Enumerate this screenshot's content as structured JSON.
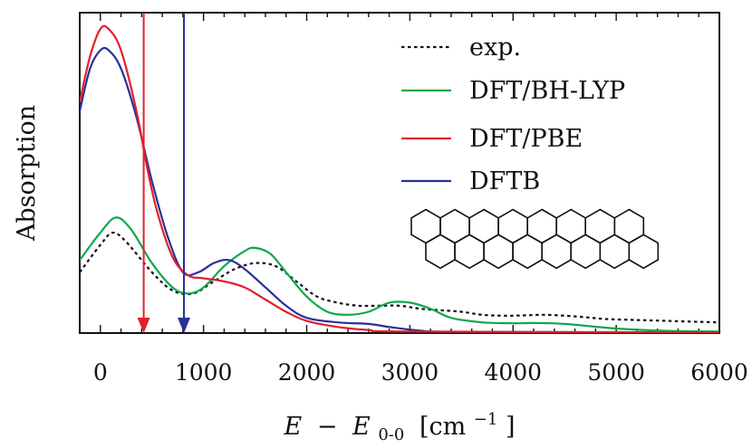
{
  "chart_data": {
    "type": "line",
    "xlabel": "E − E0-0 [cm−1]",
    "xlabel_parts": {
      "var": "E",
      "minus": "−",
      "sub_var": "E",
      "sub": "0-0",
      "unit_open": "[cm",
      "unit_exp": "−1",
      "unit_close": "]"
    },
    "ylabel": "Absorption",
    "xlim": [
      -200,
      6000
    ],
    "ylim": [
      0,
      1.0
    ],
    "x_ticks": [
      0,
      1000,
      2000,
      3000,
      4000,
      5000,
      6000
    ],
    "x_tick_labels": [
      "0",
      "1000",
      "2000",
      "3000",
      "4000",
      "5000",
      "6000"
    ],
    "y_tick_labels": [],
    "grid": false,
    "legend_position": "top-right",
    "series": [
      {
        "name": "exp.",
        "color": "#111111",
        "dash": "dotted",
        "points": [
          [
            -200,
            0.2
          ],
          [
            0,
            0.29
          ],
          [
            120,
            0.33
          ],
          [
            250,
            0.3
          ],
          [
            500,
            0.2
          ],
          [
            700,
            0.14
          ],
          [
            900,
            0.13
          ],
          [
            1100,
            0.17
          ],
          [
            1300,
            0.21
          ],
          [
            1500,
            0.23
          ],
          [
            1700,
            0.22
          ],
          [
            1900,
            0.17
          ],
          [
            2100,
            0.12
          ],
          [
            2300,
            0.1
          ],
          [
            2500,
            0.09
          ],
          [
            2700,
            0.09
          ],
          [
            2900,
            0.09
          ],
          [
            3100,
            0.08
          ],
          [
            3300,
            0.075
          ],
          [
            3500,
            0.07
          ],
          [
            3700,
            0.06
          ],
          [
            3900,
            0.057
          ],
          [
            4100,
            0.058
          ],
          [
            4300,
            0.06
          ],
          [
            4500,
            0.057
          ],
          [
            4700,
            0.052
          ],
          [
            4900,
            0.046
          ],
          [
            5200,
            0.043
          ],
          [
            5500,
            0.04
          ],
          [
            5800,
            0.037
          ],
          [
            6000,
            0.035
          ]
        ]
      },
      {
        "name": "DFT/BH-LYP",
        "color": "#0fa84a",
        "dash": "solid",
        "points": [
          [
            -200,
            0.24
          ],
          [
            0,
            0.33
          ],
          [
            150,
            0.38
          ],
          [
            300,
            0.34
          ],
          [
            500,
            0.23
          ],
          [
            700,
            0.15
          ],
          [
            850,
            0.13
          ],
          [
            1000,
            0.15
          ],
          [
            1200,
            0.22
          ],
          [
            1400,
            0.27
          ],
          [
            1500,
            0.28
          ],
          [
            1650,
            0.26
          ],
          [
            1800,
            0.2
          ],
          [
            2000,
            0.12
          ],
          [
            2200,
            0.07
          ],
          [
            2400,
            0.06
          ],
          [
            2600,
            0.07
          ],
          [
            2800,
            0.1
          ],
          [
            3000,
            0.1
          ],
          [
            3200,
            0.08
          ],
          [
            3400,
            0.05
          ],
          [
            3700,
            0.035
          ],
          [
            4000,
            0.032
          ],
          [
            4200,
            0.033
          ],
          [
            4500,
            0.03
          ],
          [
            5000,
            0.015
          ],
          [
            5500,
            0.007
          ],
          [
            6000,
            0.005
          ]
        ]
      },
      {
        "name": "DFT/PBE",
        "color": "#e3202a",
        "dash": "solid",
        "points": [
          [
            -200,
            0.76
          ],
          [
            -100,
            0.91
          ],
          [
            0,
            1.0
          ],
          [
            80,
            1.0
          ],
          [
            200,
            0.93
          ],
          [
            350,
            0.73
          ],
          [
            450,
            0.55
          ],
          [
            550,
            0.4
          ],
          [
            700,
            0.25
          ],
          [
            850,
            0.19
          ],
          [
            1000,
            0.18
          ],
          [
            1200,
            0.17
          ],
          [
            1400,
            0.15
          ],
          [
            1600,
            0.11
          ],
          [
            1800,
            0.07
          ],
          [
            2000,
            0.04
          ],
          [
            2300,
            0.02
          ],
          [
            2600,
            0.01
          ],
          [
            3000,
            0.005
          ],
          [
            6000,
            0.002
          ]
        ]
      },
      {
        "name": "DFTB",
        "color": "#28309a",
        "dash": "solid",
        "points": [
          [
            -200,
            0.73
          ],
          [
            -100,
            0.87
          ],
          [
            0,
            0.93
          ],
          [
            80,
            0.93
          ],
          [
            200,
            0.87
          ],
          [
            350,
            0.71
          ],
          [
            500,
            0.5
          ],
          [
            650,
            0.32
          ],
          [
            800,
            0.2
          ],
          [
            950,
            0.2
          ],
          [
            1100,
            0.23
          ],
          [
            1250,
            0.24
          ],
          [
            1400,
            0.21
          ],
          [
            1600,
            0.15
          ],
          [
            1800,
            0.09
          ],
          [
            2000,
            0.05
          ],
          [
            2300,
            0.035
          ],
          [
            2600,
            0.03
          ],
          [
            2800,
            0.02
          ],
          [
            3100,
            0.008
          ],
          [
            3500,
            0.004
          ],
          [
            6000,
            0.002
          ]
        ]
      }
    ],
    "arrows": [
      {
        "x": 420,
        "color": "#e3202a"
      },
      {
        "x": 810,
        "color": "#28309a"
      }
    ]
  }
}
